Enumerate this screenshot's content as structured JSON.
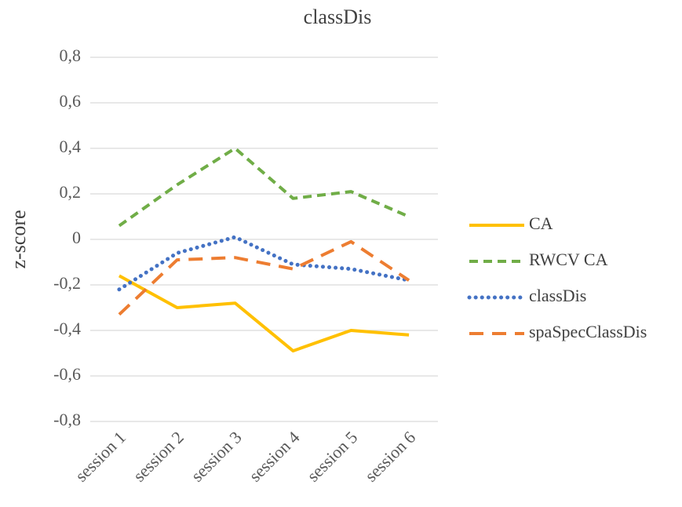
{
  "chart_data": {
    "type": "line",
    "title": "classDis",
    "y_label": "z-score",
    "categories": [
      "session 1",
      "session 2",
      "session 3",
      "session 4",
      "session 5",
      "session 6"
    ],
    "series": [
      {
        "name": "CA",
        "color": "#ffc000",
        "line_style": "solid",
        "values": [
          -0.16,
          -0.3,
          -0.28,
          -0.49,
          -0.4,
          -0.42
        ]
      },
      {
        "name": "RWCV CA",
        "color": "#70ad47",
        "line_style": "dashed",
        "values": [
          0.06,
          0.24,
          0.4,
          0.18,
          0.21,
          0.1
        ]
      },
      {
        "name": "classDis",
        "color": "#4472c4",
        "line_style": "dotted",
        "values": [
          -0.22,
          -0.06,
          0.01,
          -0.11,
          -0.13,
          -0.18
        ]
      },
      {
        "name": "spaSpecClassDis",
        "color": "#ed7d31",
        "line_style": "long-dash",
        "values": [
          -0.33,
          -0.09,
          -0.08,
          -0.13,
          -0.01,
          -0.18
        ]
      }
    ],
    "ylim": [
      -0.8,
      0.8
    ],
    "yticks": [
      {
        "value": -0.8,
        "label": "-0,8"
      },
      {
        "value": -0.6,
        "label": "-0,6"
      },
      {
        "value": -0.4,
        "label": "-0,4"
      },
      {
        "value": -0.2,
        "label": "-0,2"
      },
      0,
      {
        "value": 0.2,
        "label": "0,2"
      },
      {
        "value": 0.4,
        "label": "0,4"
      },
      {
        "value": 0.6,
        "label": "0,6"
      },
      {
        "value": 0.8,
        "label": "0,8"
      }
    ],
    "grid": true,
    "legend": "right"
  }
}
